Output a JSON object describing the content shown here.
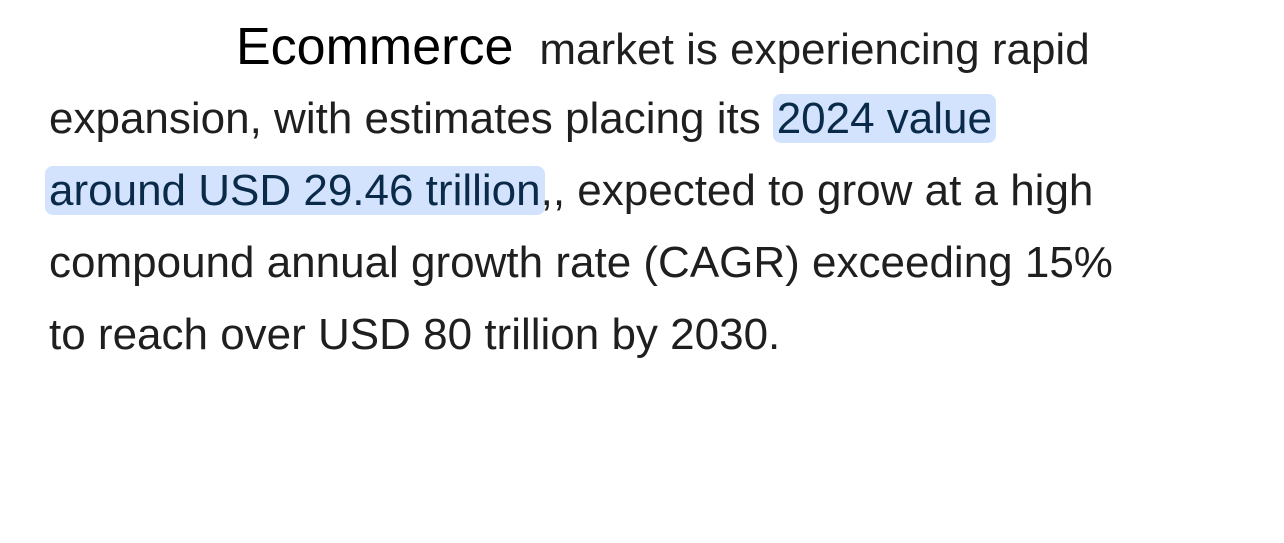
{
  "paragraph": {
    "lead": "Ecommerce",
    "lines": [
      [
        "market is experiencing rapid"
      ],
      [
        "expansion, with estimates placing its",
        "2024 value"
      ],
      [
        "around USD 29.46 trillion",
        ",, expected to grow at a high"
      ],
      [
        "compound annual growth rate (CAGR) exceeding 15%"
      ],
      [
        "to reach over USD 80 trillion by 2030."
      ]
    ]
  }
}
